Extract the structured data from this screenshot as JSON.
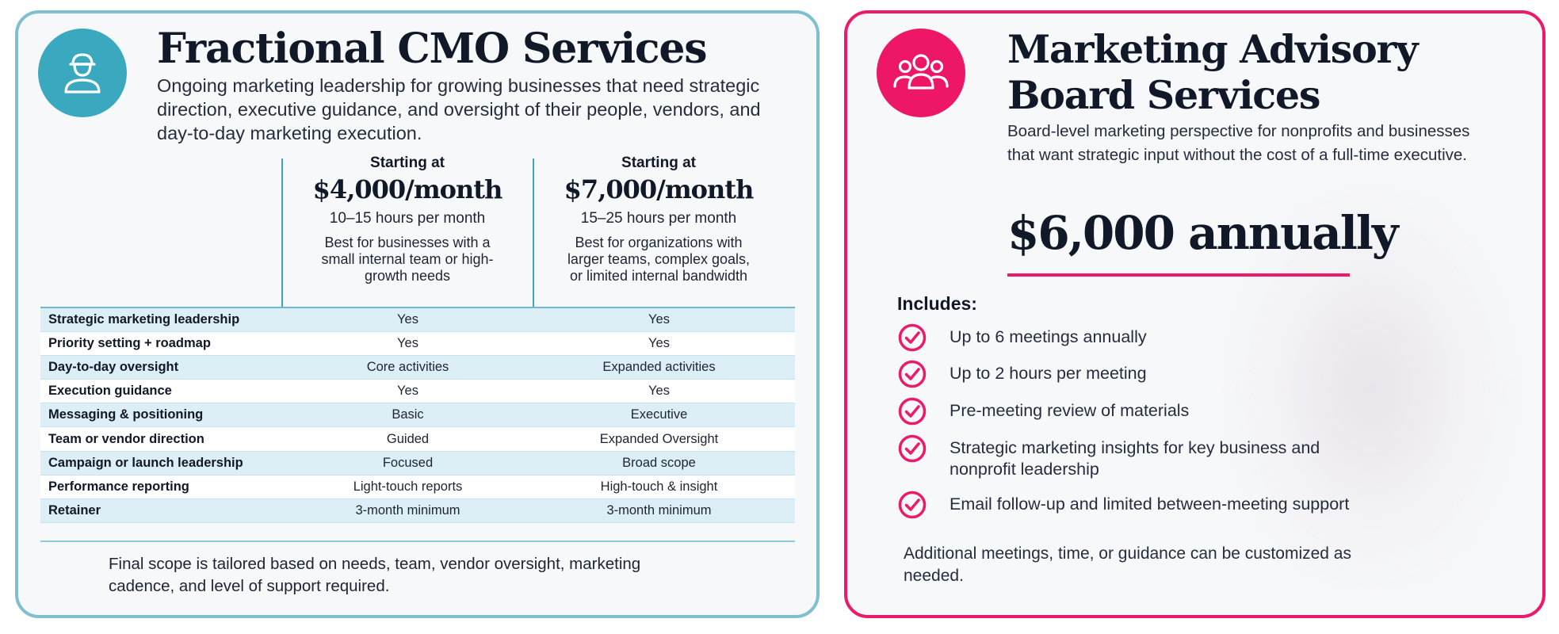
{
  "left_card": {
    "title": "Fractional CMO Services",
    "subtitle": "Ongoing marketing leadership for growing businesses that need strategic direction, executive guidance, and oversight of their people, vendors, and day-to-day marketing execution.",
    "icon": "person-icon",
    "tiers": [
      {
        "starting_label": "Starting at",
        "price": "$4,000/month",
        "hours": "10–15 hours per month",
        "description": "Best for businesses with a small internal team or high-growth needs"
      },
      {
        "starting_label": "Starting at",
        "price": "$7,000/month",
        "hours": "15–25 hours per month",
        "description": "Best for organizations with larger teams, complex goals, or limited internal bandwidth"
      }
    ],
    "rows": [
      {
        "label": "Strategic marketing leadership",
        "tier1": "Yes",
        "tier2": "Yes"
      },
      {
        "label": "Priority setting + roadmap",
        "tier1": "Yes",
        "tier2": "Yes"
      },
      {
        "label": "Day-to-day oversight",
        "tier1": "Core activities",
        "tier2": "Expanded activities"
      },
      {
        "label": "Execution guidance",
        "tier1": "Yes",
        "tier2": "Yes"
      },
      {
        "label": "Messaging & positioning",
        "tier1": "Basic",
        "tier2": "Executive"
      },
      {
        "label": "Team or vendor direction",
        "tier1": "Guided",
        "tier2": "Expanded Oversight"
      },
      {
        "label": "Campaign or launch leadership",
        "tier1": "Focused",
        "tier2": "Broad scope"
      },
      {
        "label": "Performance reporting",
        "tier1": "Light-touch reports",
        "tier2": "High-touch & insight"
      },
      {
        "label": "Retainer",
        "tier1": "3-month minimum",
        "tier2": "3-month minimum"
      }
    ],
    "footnote": "Final scope is tailored based on needs, team, vendor oversight, marketing cadence, and level of support required."
  },
  "right_card": {
    "title": "Marketing Advisory Board Services",
    "subtitle": "Board-level marketing perspective for nonprofits and businesses that want strategic input without the cost of a full-time executive.",
    "icon": "group-icon",
    "price": "$6,000 annually",
    "includes_heading": "Includes:",
    "includes": [
      "Up to 6 meetings annually",
      "Up to 2 hours per meeting",
      "Pre-meeting review of materials",
      "Strategic marketing insights for key business and nonprofit leadership",
      "Email follow-up and limited between-meeting support"
    ],
    "footnote": "Additional meetings, time, or guidance can be customized as needed."
  },
  "colors": {
    "teal_accent": "#3aa9bf",
    "pink_accent": "#ed1667",
    "table_stripe": "#ddeff6"
  }
}
